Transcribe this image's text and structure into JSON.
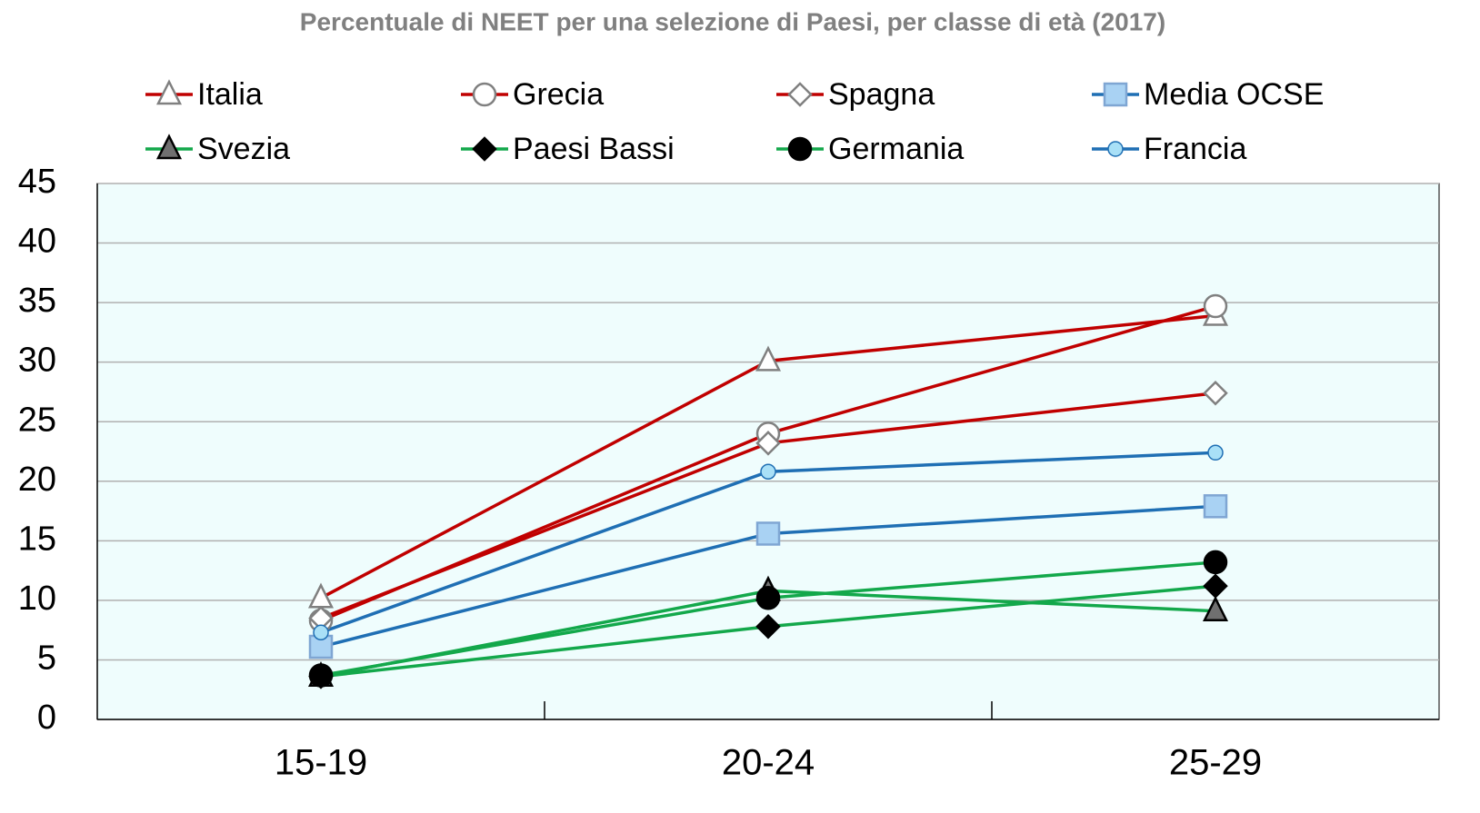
{
  "chart_data": {
    "type": "line",
    "title": "Percentuale di NEET per una selezione di Paesi, per classe di età (2017)",
    "categories": [
      "15-19",
      "20-24",
      "25-29"
    ],
    "series": [
      {
        "name": "Italia",
        "color": "#c00000",
        "marker": "triangle",
        "marker_fill": "#ffffff",
        "marker_stroke": "#808080",
        "values": [
          10.2,
          30.1,
          33.9
        ]
      },
      {
        "name": "Grecia",
        "color": "#c00000",
        "marker": "circle",
        "marker_fill": "#ffffff",
        "marker_stroke": "#808080",
        "values": [
          8.3,
          24.0,
          34.7
        ]
      },
      {
        "name": "Spagna",
        "color": "#c00000",
        "marker": "diamond",
        "marker_fill": "#ffffff",
        "marker_stroke": "#808080",
        "values": [
          8.5,
          23.2,
          27.4
        ]
      },
      {
        "name": "Media OCSE",
        "color": "#1f6fb4",
        "marker": "square",
        "marker_fill": "#a9d2f3",
        "marker_stroke": "#7fa6d3",
        "values": [
          6.1,
          15.6,
          17.9
        ]
      },
      {
        "name": "Svezia",
        "color": "#13a84b",
        "marker": "triangle",
        "marker_fill": "#707070",
        "marker_stroke": "#000000",
        "values": [
          3.6,
          10.8,
          9.1
        ]
      },
      {
        "name": "Paesi Bassi",
        "color": "#13a84b",
        "marker": "diamond",
        "marker_fill": "#000000",
        "marker_stroke": "#000000",
        "values": [
          3.6,
          7.8,
          11.2
        ]
      },
      {
        "name": "Germania",
        "color": "#13a84b",
        "marker": "circle",
        "marker_fill": "#000000",
        "marker_stroke": "#000000",
        "values": [
          3.7,
          10.2,
          13.2
        ]
      },
      {
        "name": "Francia",
        "color": "#1f6fb4",
        "marker": "circle-small",
        "marker_fill": "#a9e0f7",
        "marker_stroke": "#1f6fb4",
        "values": [
          7.3,
          20.8,
          22.4
        ]
      }
    ],
    "ylim": [
      0,
      45
    ],
    "yticks": [
      0,
      5,
      10,
      15,
      20,
      25,
      30,
      35,
      40,
      45
    ],
    "grid": true
  }
}
